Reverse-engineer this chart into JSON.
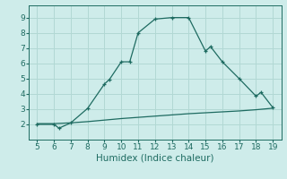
{
  "xlabel": "Humidex (Indice chaleur)",
  "xlim": [
    4.5,
    19.5
  ],
  "ylim": [
    1.0,
    9.8
  ],
  "xticks": [
    5,
    6,
    7,
    8,
    9,
    10,
    11,
    12,
    13,
    14,
    15,
    16,
    17,
    18,
    19
  ],
  "yticks": [
    2,
    3,
    4,
    5,
    6,
    7,
    8,
    9
  ],
  "bg_color": "#ceecea",
  "line_color": "#1e6b61",
  "grid_color": "#b2d8d4",
  "line1_x": [
    5,
    6,
    6.3,
    7,
    8,
    9,
    9.3,
    10,
    10.5,
    11,
    12,
    13,
    14,
    15,
    15.3,
    16,
    17,
    18,
    18.3,
    19
  ],
  "line1_y": [
    2.0,
    2.0,
    1.75,
    2.1,
    3.05,
    4.65,
    4.95,
    6.1,
    6.1,
    8.0,
    8.9,
    9.0,
    9.0,
    6.8,
    7.1,
    6.1,
    5.0,
    3.85,
    4.1,
    3.1
  ],
  "line2_x": [
    5,
    6,
    7,
    8,
    9,
    10,
    11,
    12,
    13,
    14,
    15,
    16,
    17,
    18,
    19
  ],
  "line2_y": [
    2.05,
    2.05,
    2.1,
    2.18,
    2.28,
    2.38,
    2.46,
    2.54,
    2.62,
    2.7,
    2.76,
    2.82,
    2.88,
    2.96,
    3.06
  ],
  "tick_fontsize": 6.5,
  "xlabel_fontsize": 7.5
}
